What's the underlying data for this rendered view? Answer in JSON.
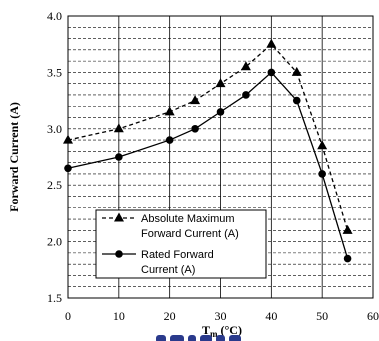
{
  "chart_data": {
    "type": "line",
    "xlabel": "T",
    "xlabel_sub": "m",
    "xlabel_unit": " (°C)",
    "ylabel": "Forward Current (A)",
    "xlim": [
      0,
      60
    ],
    "ylim": [
      1.5,
      4.0
    ],
    "x_ticks": [
      "0",
      "10",
      "20",
      "30",
      "40",
      "50",
      "60"
    ],
    "y_ticks": [
      "1.5",
      "2.0",
      "2.5",
      "3.0",
      "3.5",
      "4.0"
    ],
    "grid": true,
    "legend_position": "bottom-left",
    "series": [
      {
        "name_lines": [
          "Absolute Maximum",
          "Forward Current (A)"
        ],
        "marker": "triangle",
        "line_style": "dashed",
        "x": [
          0,
          10,
          20,
          25,
          30,
          35,
          40,
          45,
          50,
          55
        ],
        "y": [
          2.9,
          3.0,
          3.15,
          3.25,
          3.4,
          3.55,
          3.75,
          3.5,
          2.85,
          2.1
        ]
      },
      {
        "name_lines": [
          "Rated Forward",
          "Current (A)"
        ],
        "marker": "circle",
        "line_style": "solid",
        "x": [
          0,
          10,
          20,
          25,
          30,
          35,
          40,
          45,
          50,
          55
        ],
        "y": [
          2.65,
          2.75,
          2.9,
          3.0,
          3.15,
          3.3,
          3.5,
          3.25,
          2.6,
          1.85
        ]
      }
    ]
  }
}
